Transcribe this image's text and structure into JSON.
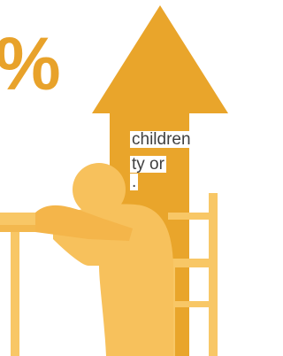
{
  "texts": {
    "percent": "%",
    "line1": "children",
    "line2": "ty or",
    "line3": "."
  }
}
